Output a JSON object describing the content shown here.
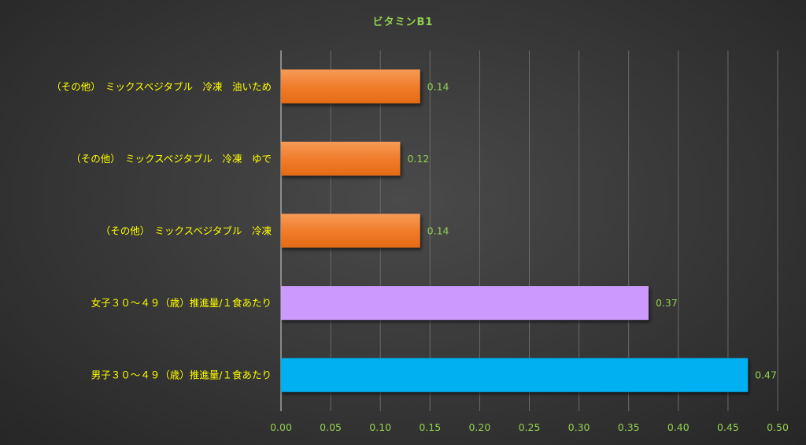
{
  "chart_data": {
    "type": "bar",
    "orientation": "horizontal",
    "title": "ビタミンB1",
    "categories": [
      "（その他）　ミックスベジタブル　冷凍　油いため",
      "（その他）　ミックスベジタブル　冷凍　ゆで",
      "（その他）　ミックスベジタブル　冷凍",
      "女子３０～４９（歳）推進量/１食あたり",
      "男子３０～４９（歳）推進量/１食あたり"
    ],
    "values": [
      0.14,
      0.12,
      0.14,
      0.37,
      0.47
    ],
    "value_labels": [
      "0.14",
      "0.12",
      "0.14",
      "0.37",
      "0.47"
    ],
    "bar_colors": [
      "#f07d2a",
      "#f07d2a",
      "#f07d2a",
      "#cc99ff",
      "#00b0f0"
    ],
    "xlim": [
      0,
      0.5
    ],
    "x_ticks": [
      "0.00",
      "0.05",
      "0.10",
      "0.15",
      "0.20",
      "0.25",
      "0.30",
      "0.35",
      "0.40",
      "0.45",
      "0.50"
    ],
    "xlabel": "",
    "ylabel": "",
    "grid": true,
    "legend": "none",
    "colors": {
      "title": "#92d050",
      "category_labels": "#ffff00",
      "tick_labels": "#92d050",
      "data_labels": "#92d050",
      "gridlines": "#6a6a6a",
      "axis": "#d9d9d9"
    }
  }
}
